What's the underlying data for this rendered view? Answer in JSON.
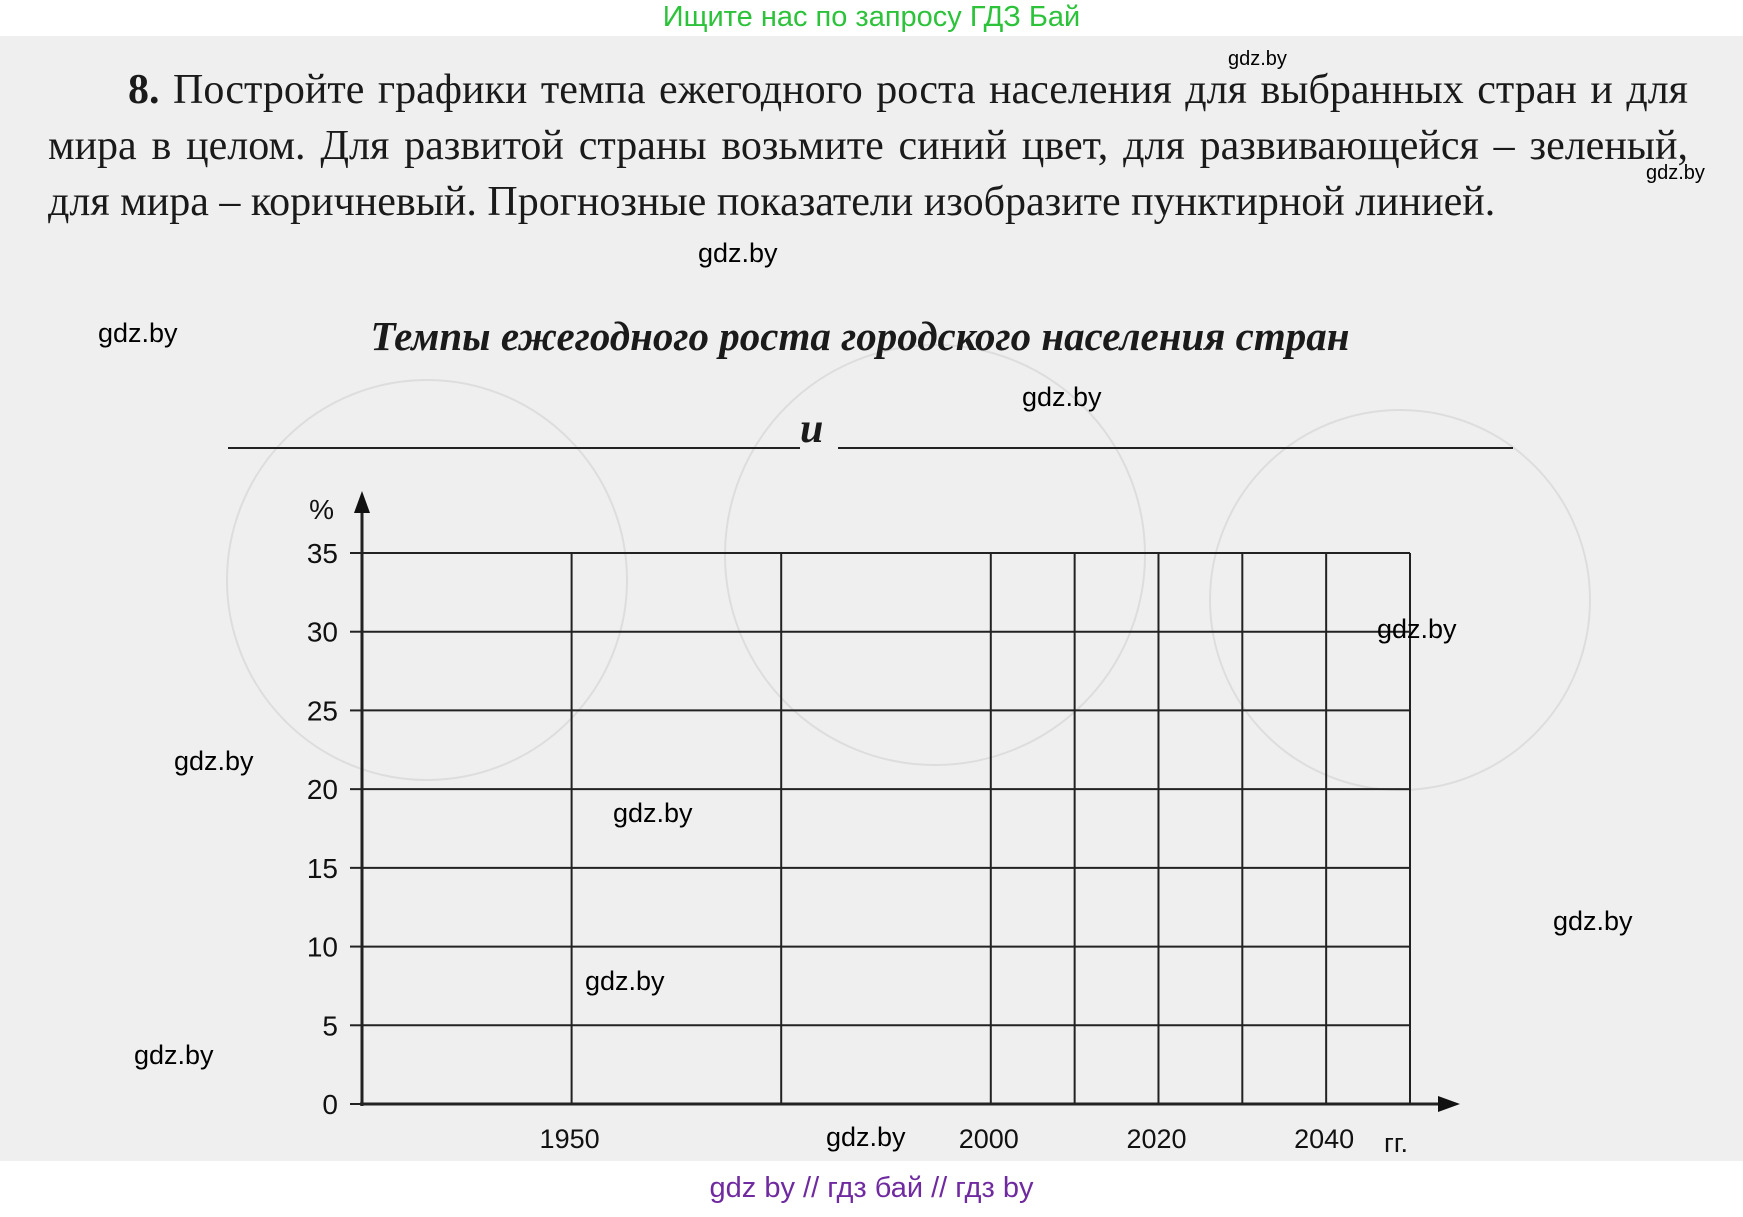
{
  "banner_top": "Ищите нас по запросу ГДЗ Бай",
  "banner_bottom": "gdz by  //  гдз бай  //  гдз by",
  "task": {
    "number": "8.",
    "text": "Постройте графики темпа ежегодного роста населения для выбранных стран и для мира в целом. Для развитой страны возьмите синий цвет, для развивающейся – зеленый, для мира – коричневый. Прогнозные показатели изобразите пунктирной линией."
  },
  "chart_heading": {
    "title": "Темпы ежегодного роста городского населения стран",
    "conjunction": "и"
  },
  "watermarks": [
    "gdz.by",
    "gdz.by",
    "gdz.by",
    "gdz.by",
    "gdz.by",
    "gdz.by",
    "gdz.by",
    "gdz.by",
    "gdz.by",
    "gdz.by",
    "gdz.by",
    "gdz.by"
  ],
  "chart_data": {
    "type": "line",
    "title": "Темпы ежегодного роста городского населения стран",
    "ylabel": "%",
    "xlabel": "гг.",
    "ylim": [
      0,
      35
    ],
    "yticks": [
      0,
      5,
      10,
      15,
      20,
      25,
      30,
      35
    ],
    "xlim": [
      1925,
      2050
    ],
    "x_grid": [
      1925,
      1950,
      1975,
      2000,
      2010,
      2020,
      2030,
      2040,
      2050
    ],
    "xtick_labels": [
      {
        "year": 1950,
        "label": "1950"
      },
      {
        "year": 2000,
        "label": "2000"
      },
      {
        "year": 2020,
        "label": "2020"
      },
      {
        "year": 2040,
        "label": "2040"
      }
    ],
    "grid": true,
    "series": []
  },
  "colors": {
    "page_bg": "#efefef",
    "grid_line": "#222222",
    "banner_top": "#2cc23a",
    "banner_bottom": "#6f2aa0"
  }
}
